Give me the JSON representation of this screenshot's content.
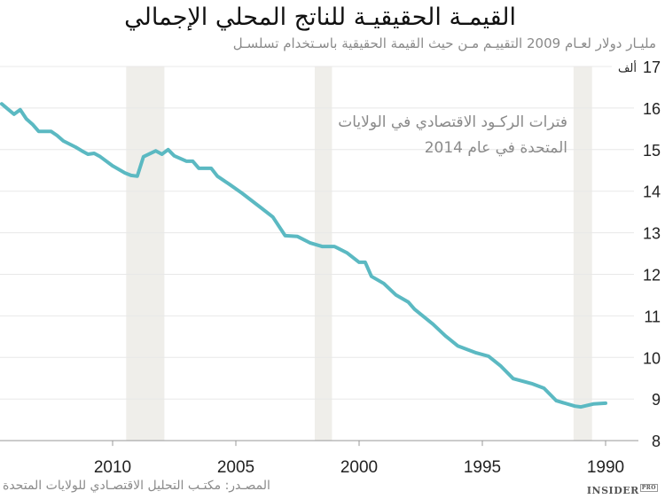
{
  "title": "القيمـة الحقيقيـة للناتج المحلي الإجمالي",
  "subtitle": "مليـار دولار لعـام 2009  التقييـم مـن حيث القيمة الحقيقية باسـتخدام تسلسـل",
  "source": "المصـدر: مكتـب التحليل الاقتصـادي للولايات المتحدة",
  "logo": {
    "text": "INSIDER",
    "badge": "PRO"
  },
  "legend": {
    "line1": "فترات الركـود الاقتصادي في الولايات",
    "line2": "المتحدة في عام 2014"
  },
  "chart_data": {
    "type": "line",
    "title": "القيمـة الحقيقيـة للناتج المحلي الإجمالي",
    "ylabel": "مليـار دولار لعـام 2009",
    "x_reversed": true,
    "xlim": [
      2014.6,
      1989.5
    ],
    "ylim": [
      8,
      17
    ],
    "x_ticks": [
      2010,
      2005,
      2000,
      1995,
      1990
    ],
    "y_ticks": [
      8,
      9,
      10,
      11,
      12,
      13,
      14,
      15,
      16,
      17
    ],
    "y_top_suffix": "ألف",
    "grid": true,
    "line_color": "#5bb9c2",
    "recession_color": "#efeeea",
    "recessions": [
      [
        2007.9,
        2009.45
      ],
      [
        2001.1,
        2001.8
      ],
      [
        1990.55,
        1991.3
      ]
    ],
    "series": [
      {
        "x": [
          2014.5,
          2014.0,
          2013.75,
          2013.5,
          2013.25,
          2013.0,
          2012.5,
          2012.25,
          2012.0,
          2011.5,
          2011.25,
          2011.0,
          2010.75,
          2010.5,
          2010.0,
          2009.5,
          2009.25,
          2009.0,
          2008.75,
          2008.25,
          2008.0,
          2007.75,
          2007.5,
          2007.0,
          2006.75,
          2006.5,
          2006.0,
          2005.75,
          2005.25,
          2004.75,
          2004.0,
          2003.5,
          2003.0,
          2002.5,
          2002.0,
          2001.5,
          2001.0,
          2000.5,
          2000.0,
          1999.75,
          1999.5,
          1999.0,
          1998.5,
          1998.0,
          1997.75,
          1997.0,
          1996.5,
          1996.0,
          1995.25,
          1994.75,
          1994.25,
          1993.75,
          1993.0,
          1992.5,
          1992.0,
          1991.25,
          1991.0,
          1990.5,
          1990.0
        ],
        "y": [
          16.1,
          15.85,
          15.96,
          15.74,
          15.61,
          15.44,
          15.44,
          15.34,
          15.21,
          15.06,
          14.97,
          14.89,
          14.91,
          14.83,
          14.61,
          14.44,
          14.38,
          14.36,
          14.83,
          14.97,
          14.89,
          15.0,
          14.85,
          14.72,
          14.72,
          14.55,
          14.55,
          14.36,
          14.16,
          13.95,
          13.61,
          13.38,
          12.93,
          12.91,
          12.76,
          12.67,
          12.67,
          12.52,
          12.29,
          12.29,
          11.95,
          11.78,
          11.5,
          11.33,
          11.16,
          10.8,
          10.52,
          10.28,
          10.11,
          10.03,
          9.79,
          9.49,
          9.37,
          9.26,
          8.96,
          8.83,
          8.81,
          8.88,
          8.9
        ]
      }
    ]
  }
}
